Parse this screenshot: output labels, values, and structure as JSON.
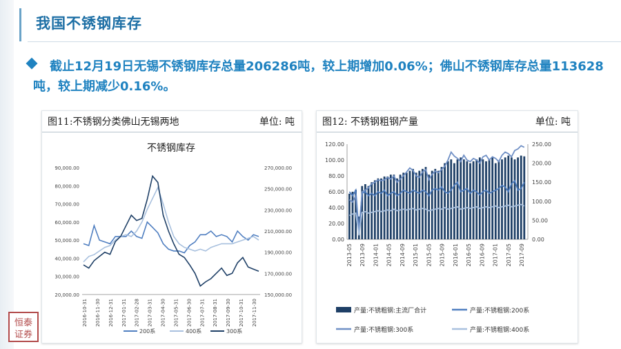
{
  "header": {
    "title": "我国不锈钢库存"
  },
  "summary": {
    "text": "截止12月19日无锡不锈钢库存总量206286吨，较上期增加0.06%；佛山不锈钢库存总量113628吨，较上期减少0.16%。"
  },
  "colors": {
    "accent": "#1f82c0",
    "title": "#1d6fa5",
    "series_dark": "#1e3f66",
    "series_mid": "#4f7ec0",
    "series_light": "#a8c0de"
  },
  "logo": {
    "text": "恒泰证券"
  },
  "chart_data": [
    {
      "type": "line",
      "panel_title": "图11:不锈钢分类佛山无锡两地",
      "unit_label": "单位:  吨",
      "title": "不锈钢库存",
      "x_tick_labels": [
        "2016-10-31",
        "2016-11-30",
        "2016-12-31",
        "2017-01-31",
        "2017-02-28",
        "2017-03-31",
        "2017-04-30",
        "2017-05-31",
        "2017-06-30",
        "2017-07-31",
        "2017-08-31",
        "2017-09-30",
        "2017-10-31",
        "2017-11-30"
      ],
      "y_left": {
        "range": [
          20000,
          90000
        ],
        "ticks": [
          "20,000.00",
          "30,000.00",
          "40,000.00",
          "50,000.00",
          "60,000.00",
          "70,000.00",
          "80,000.00",
          "90,000.00"
        ]
      },
      "y_right": {
        "range": [
          150000,
          270000
        ],
        "ticks": [
          "150,000.00",
          "170,000.00",
          "190,000.00",
          "210,000.00",
          "230,000.00",
          "250,000.00",
          "270,000.00"
        ]
      },
      "legend": [
        {
          "name": "200系"
        },
        {
          "name": "400系"
        },
        {
          "name": "300系"
        }
      ],
      "series": [
        {
          "name": "200系",
          "axis": "left",
          "color": "#4f7ec0",
          "values": [
            48000,
            47000,
            58000,
            50000,
            49000,
            48000,
            52000,
            52000,
            52000,
            55000,
            52000,
            51000,
            60000,
            57000,
            54000,
            48000,
            45000,
            44000,
            44000,
            43000,
            47000,
            49000,
            53000,
            53000,
            55000,
            52000,
            53000,
            52000,
            49000,
            55000,
            52000,
            50000,
            53000,
            52000
          ]
        },
        {
          "name": "400系",
          "axis": "left",
          "color": "#a8c0de",
          "values": [
            38000,
            41000,
            42000,
            44000,
            46000,
            47000,
            50000,
            52000,
            53000,
            52000,
            55000,
            60000,
            67000,
            73000,
            79000,
            70000,
            60000,
            52000,
            48000,
            46000,
            45000,
            44000,
            45000,
            44000,
            46000,
            47000,
            48000,
            48000,
            48000,
            49000,
            50000,
            51000,
            52000,
            50000
          ]
        },
        {
          "name": "300系",
          "axis": "right",
          "color": "#1e3f66",
          "values": [
            178000,
            175000,
            182000,
            186000,
            190000,
            188000,
            200000,
            205000,
            215000,
            225000,
            220000,
            222000,
            240000,
            262000,
            256000,
            225000,
            210000,
            198000,
            188000,
            185000,
            178000,
            170000,
            158000,
            162000,
            165000,
            170000,
            175000,
            168000,
            170000,
            180000,
            185000,
            176000,
            174000,
            172000
          ]
        }
      ]
    },
    {
      "type": "bar",
      "panel_title": "图12: 不锈钢粗钢产量",
      "unit_label": "单位:  吨",
      "title": "",
      "x_tick_labels": [
        "2013-05",
        "2013-09",
        "2014-01",
        "2014-05",
        "2014-09",
        "2015-01",
        "2015-05",
        "2015-09",
        "2016-01",
        "2016-05",
        "2016-09",
        "2017-01",
        "2017-05",
        "2017-09"
      ],
      "y_left": {
        "range": [
          0,
          120
        ],
        "ticks": [
          "0.00",
          "20.00",
          "40.00",
          "60.00",
          "80.00",
          "100.00",
          "120.00"
        ]
      },
      "y_right": {
        "range": [
          0,
          250
        ],
        "ticks": [
          "0.00",
          "50.00",
          "100.00",
          "150.00",
          "200.00",
          "250.00"
        ]
      },
      "legend": [
        {
          "name": "产量:不锈粗钢:主流厂合计"
        },
        {
          "name": "产量:不锈粗钢:200系"
        },
        {
          "name": "产量:不锈粗钢:300系"
        },
        {
          "name": "产量:不锈粗钢:400系"
        }
      ],
      "series": [
        {
          "name": "产量:不锈粗钢:主流厂合计",
          "kind": "bar",
          "axis": "right",
          "color": "#1e3f66",
          "values": [
            120,
            125,
            130,
            60,
            140,
            145,
            140,
            150,
            155,
            160,
            160,
            165,
            165,
            170,
            170,
            160,
            170,
            175,
            175,
            180,
            185,
            175,
            180,
            185,
            190,
            170,
            180,
            185,
            180,
            190,
            200,
            205,
            210,
            200,
            210,
            215,
            210,
            205,
            200,
            205,
            210,
            215,
            210,
            205,
            210,
            215,
            200,
            205,
            210,
            215,
            220,
            215,
            210,
            215,
            220,
            218
          ]
        },
        {
          "name": "产量:不锈粗钢:200系",
          "kind": "line",
          "axis": "left",
          "color": "#4f7ec0",
          "values": [
            60,
            55,
            62,
            10,
            58,
            60,
            55,
            58,
            55,
            60,
            58,
            62,
            55,
            58,
            60,
            55,
            58,
            62,
            60,
            58,
            62,
            60,
            58,
            62,
            60,
            55,
            62,
            64,
            62,
            66,
            60,
            58,
            62,
            68,
            72,
            60,
            62,
            64,
            58,
            62,
            60,
            56,
            60,
            62,
            58,
            60,
            62,
            64,
            68,
            66,
            60,
            70,
            74,
            62,
            64,
            72
          ]
        },
        {
          "name": "产量:不锈粗钢:300系",
          "kind": "line",
          "axis": "left",
          "color": "#6f8fc5",
          "values": [
            50,
            47,
            55,
            8,
            60,
            62,
            65,
            70,
            72,
            75,
            74,
            75,
            78,
            76,
            80,
            72,
            76,
            80,
            85,
            90,
            87,
            80,
            78,
            85,
            88,
            75,
            82,
            86,
            84,
            88,
            92,
            100,
            110,
            105,
            102,
            98,
            106,
            100,
            98,
            102,
            100,
            96,
            104,
            106,
            100,
            104,
            102,
            98,
            106,
            110,
            108,
            104,
            112,
            114,
            118,
            116
          ]
        },
        {
          "name": "产量:不锈粗钢:400系",
          "kind": "line",
          "axis": "left",
          "color": "#a8c0de",
          "values": [
            30,
            32,
            33,
            5,
            34,
            35,
            33,
            34,
            35,
            36,
            35,
            36,
            37,
            36,
            38,
            36,
            37,
            38,
            37,
            38,
            39,
            37,
            38,
            39,
            38,
            36,
            37,
            38,
            39,
            38,
            40,
            38,
            39,
            40,
            41,
            38,
            39,
            40,
            39,
            40,
            41,
            39,
            40,
            41,
            40,
            41,
            42,
            40,
            41,
            42,
            43,
            41,
            42,
            43,
            44,
            42
          ]
        }
      ]
    }
  ]
}
